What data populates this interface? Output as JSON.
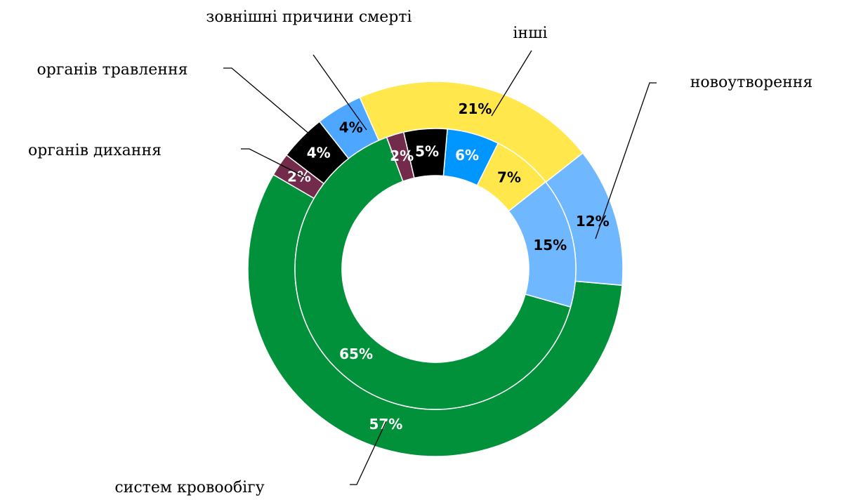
{
  "chart_data": {
    "type": "doughnut",
    "categories": [
      "систем кровообігу",
      "новоутворення",
      "інші",
      "зовнішні причини смерті",
      "органів травлення",
      "органів дихання"
    ],
    "series": [
      {
        "colors": [
          "#00913a",
          "#6fb7ff",
          "#ffe74c",
          "#4da6ff",
          "#000000",
          "#722b4a"
        ],
        "values": [
          57,
          12,
          21,
          4,
          4,
          2
        ],
        "value_labels": [
          "57%",
          "12%",
          "21%",
          "4%",
          "4%",
          "2%"
        ]
      },
      {
        "colors": [
          "#00913a",
          "#6fb7ff",
          "#ffe74c",
          "#0096ff",
          "#000000",
          "#722b4a"
        ],
        "values": [
          65,
          15,
          7,
          6,
          5,
          2
        ],
        "value_labels": [
          "65%",
          "15%",
          "7%",
          "6%",
          "5%",
          "2%"
        ]
      }
    ]
  }
}
